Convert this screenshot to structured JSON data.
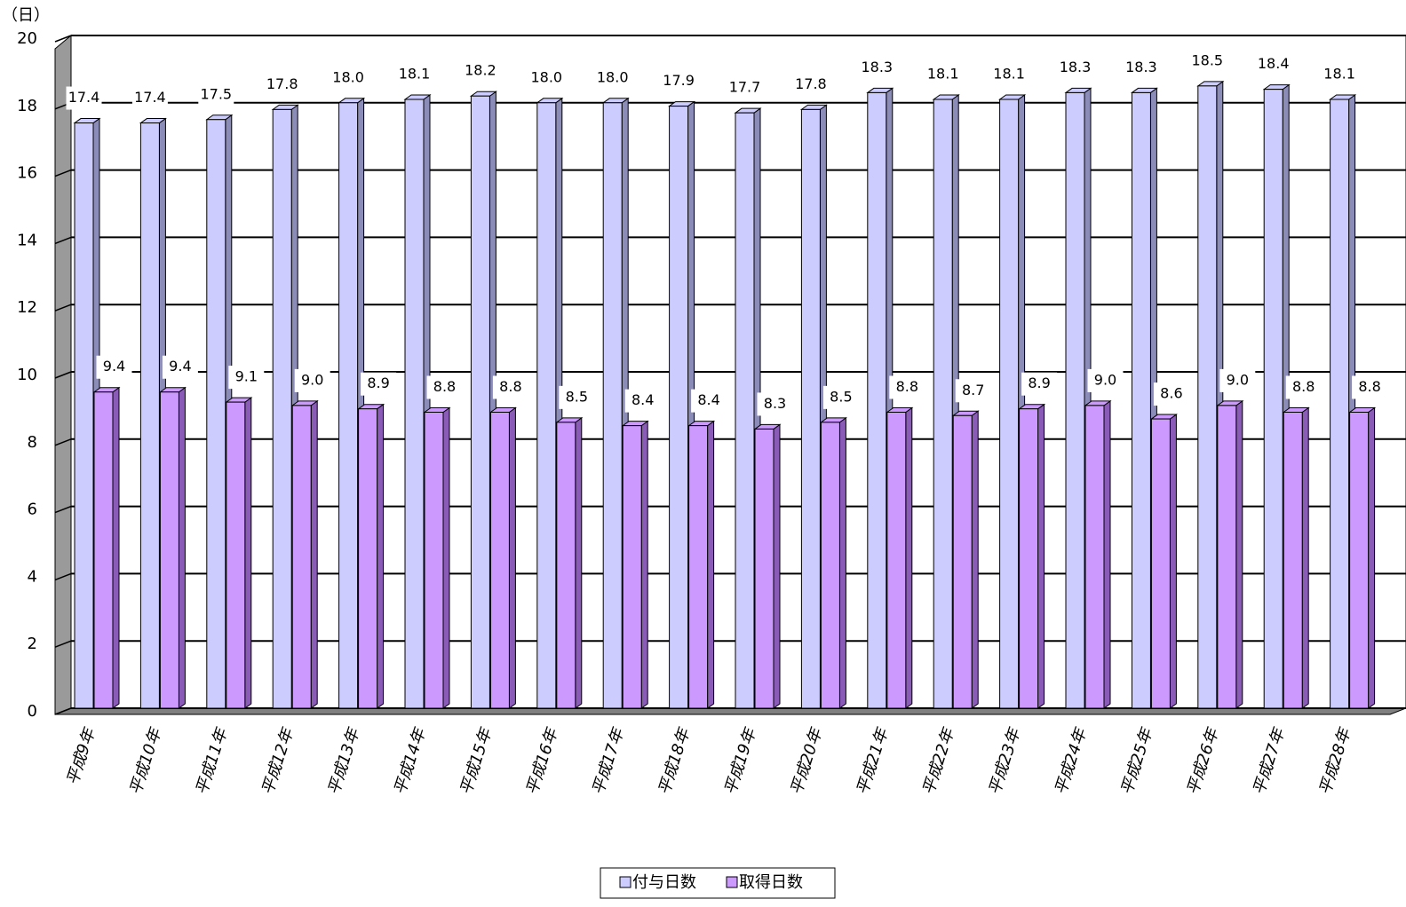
{
  "chart_data": {
    "type": "bar",
    "y_label": "（日）",
    "categories": [
      "平成9年",
      "平成10年",
      "平成11年",
      "平成12年",
      "平成13年",
      "平成14年",
      "平成15年",
      "平成16年",
      "平成17年",
      "平成18年",
      "平成19年",
      "平成20年",
      "平成21年",
      "平成22年",
      "平成23年",
      "平成24年",
      "平成25年",
      "平成26年",
      "平成27年",
      "平成28年"
    ],
    "series": [
      {
        "name": "付与日数",
        "color": "#ccccff",
        "side_color": "#8c8cb8",
        "values": [
          17.4,
          17.4,
          17.5,
          17.8,
          18.0,
          18.1,
          18.2,
          18.0,
          18.0,
          17.9,
          17.7,
          17.8,
          18.3,
          18.1,
          18.1,
          18.3,
          18.3,
          18.5,
          18.4,
          18.1
        ],
        "value_labels": [
          "17.4",
          "17.4",
          "17.5",
          "17.8",
          "18.0",
          "18.1",
          "18.2",
          "18.0",
          "18.0",
          "17.9",
          "17.7",
          "17.8",
          "18.3",
          "18.1",
          "18.1",
          "18.3",
          "18.3",
          "18.5",
          "18.4",
          "18.1"
        ]
      },
      {
        "name": "取得日数",
        "color": "#cc99ff",
        "side_color": "#8a5cb8",
        "values": [
          9.4,
          9.4,
          9.1,
          9.0,
          8.9,
          8.8,
          8.8,
          8.5,
          8.4,
          8.4,
          8.3,
          8.5,
          8.8,
          8.7,
          8.9,
          9.0,
          8.6,
          9.0,
          8.8,
          8.8
        ],
        "value_labels": [
          "9.4",
          "9.4",
          "9.1",
          "9.0",
          "8.9",
          "8.8",
          "8.8",
          "8.5",
          "8.4",
          "8.4",
          "8.3",
          "8.5",
          "8.8",
          "8.7",
          "8.9",
          "9.0",
          "8.6",
          "9.0",
          "8.8",
          "8.8"
        ]
      }
    ],
    "ylim": [
      0,
      20
    ],
    "yticks": [
      0,
      2,
      4,
      6,
      8,
      10,
      12,
      14,
      16,
      18,
      20
    ],
    "grid": true,
    "legend": "bottom"
  }
}
